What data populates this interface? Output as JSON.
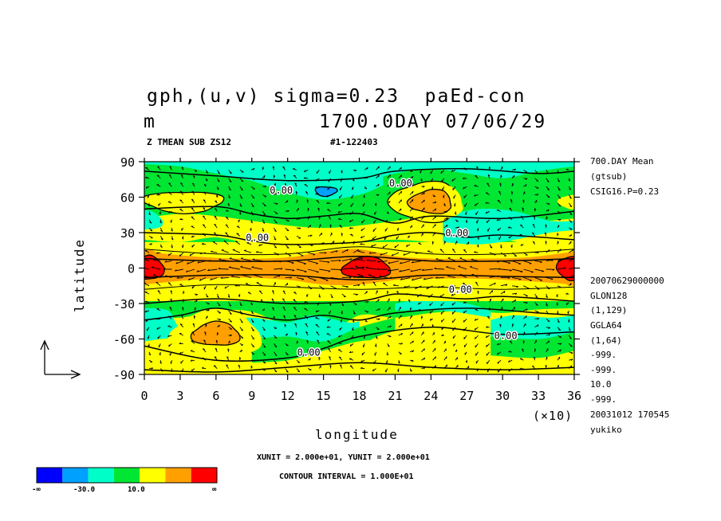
{
  "header": {
    "title_line1": "gph,(u,v) sigma=0.23  paEd-con",
    "title_line2_left": "m",
    "title_line2_right": "1700.0DAY 07/06/29",
    "subtitle_left": "Z TMEAN SUB ZS12",
    "subtitle_right": "#1-122403"
  },
  "sidebar": {
    "top": [
      "700.DAY Mean",
      "(gtsub)",
      "CSIG16.P=0.23"
    ],
    "bottom": [
      "20070629000000",
      "GLON128",
      "(1,129)",
      "GGLA64",
      "(1,64)",
      "-999.",
      "-999.",
      "10.0",
      "-999.",
      "20031012 170545",
      "yukiko"
    ]
  },
  "footer": {
    "units": "XUNIT = 2.000e+01, YUNIT = 2.000e+01",
    "contour_interval": "CONTOUR INTERVAL = 1.000E+01",
    "x_multiplier": "(×10)"
  },
  "colors": {
    "levels": [
      "#0000ff",
      "#00a0ff",
      "#00ffc8",
      "#00e632",
      "#ffff00",
      "#ffa000",
      "#ff0000"
    ]
  },
  "colorbar": {
    "labels": [
      "-∞",
      "-30.0",
      "10.0",
      "∞"
    ]
  },
  "chart_data": {
    "type": "heatmap",
    "title": "gph,(u,v) sigma=0.23  paEd-con",
    "xlabel": "longitude",
    "ylabel": "latitude",
    "xlim": [
      0,
      36
    ],
    "ylim": [
      -90,
      90
    ],
    "x_ticks": [
      0,
      3,
      6,
      9,
      12,
      15,
      18,
      21,
      24,
      27,
      30,
      33,
      36
    ],
    "x_tick_labels": [
      "0",
      "3",
      "6",
      "9",
      "12",
      "15",
      "18",
      "21",
      "24",
      "27",
      "30",
      "33",
      "36"
    ],
    "y_ticks": [
      90,
      60,
      30,
      0,
      -30,
      -60,
      -90
    ],
    "y_tick_labels": [
      "90",
      "60",
      "30",
      "0",
      "-30",
      "-60",
      "-90"
    ],
    "contour_labels": [
      {
        "text": "0.00",
        "x": 10.5,
        "y": 63
      },
      {
        "text": "0.00",
        "x": 20.5,
        "y": 69
      },
      {
        "text": "0.00",
        "x": 8.5,
        "y": 23
      },
      {
        "text": "0.00",
        "x": 25.2,
        "y": 27
      },
      {
        "text": "0.00",
        "x": 25.5,
        "y": -21
      },
      {
        "text": "0.00",
        "x": 29.3,
        "y": -60
      },
      {
        "text": "0.00",
        "x": 12.8,
        "y": -74
      }
    ],
    "field_features": [
      {
        "level": 6,
        "x": 0.5,
        "y": 0,
        "rx": 1.1,
        "ry": 10
      },
      {
        "level": 6,
        "x": 18.6,
        "y": 0,
        "rx": 2.0,
        "ry": 9
      },
      {
        "level": 6,
        "x": 35.6,
        "y": 0,
        "rx": 1.0,
        "ry": 10
      },
      {
        "level": 5,
        "x": 24.0,
        "y": 56,
        "rx": 1.8,
        "ry": 10
      },
      {
        "level": 5,
        "x": 6.0,
        "y": -56,
        "rx": 2.0,
        "ry": 10
      },
      {
        "level": 1,
        "x": 15.2,
        "y": 65,
        "rx": 0.9,
        "ry": 4
      }
    ]
  }
}
